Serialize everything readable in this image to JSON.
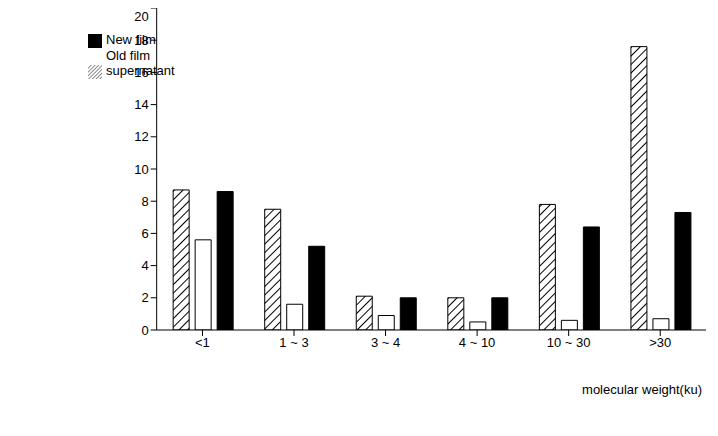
{
  "chart_data": {
    "type": "bar",
    "x_label": "molecular weight(ku)",
    "categories": [
      "<1",
      "1 ~ 3",
      "3 ~ 4",
      "4 ~ 10",
      "10 ~ 30",
      ">30"
    ],
    "series": [
      {
        "name": "supernatant",
        "color": "#000000",
        "values": [
          8.7,
          7.5,
          2.1,
          2.0,
          7.8,
          17.6
        ]
      },
      {
        "name": "Old film",
        "color": "#ffffff",
        "values": [
          5.6,
          1.6,
          0.9,
          0.5,
          0.6,
          0.7
        ]
      },
      {
        "name": "New film",
        "color": "#000000",
        "values": [
          8.6,
          5.2,
          2.0,
          2.0,
          6.4,
          7.3
        ]
      }
    ],
    "ylim": [
      0,
      20
    ],
    "yticks": [
      0,
      2,
      4,
      6,
      8,
      10,
      12,
      14,
      16,
      18,
      20
    ],
    "grid": false,
    "legend": "upper left"
  }
}
